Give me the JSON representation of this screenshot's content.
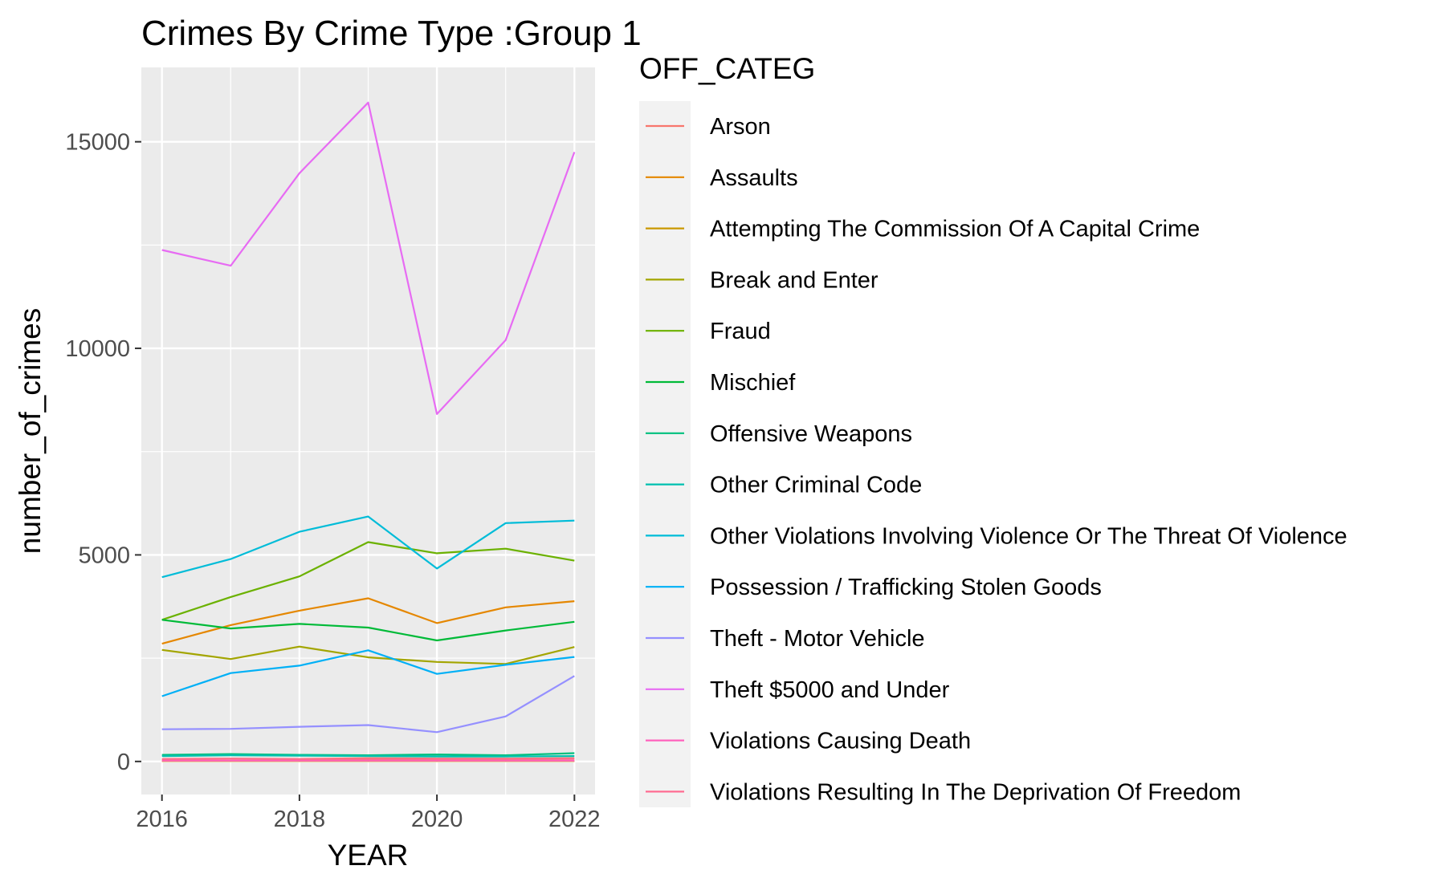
{
  "chart_data": {
    "type": "line",
    "title": "Crimes By Crime Type :Group 1",
    "xlabel": "YEAR",
    "ylabel": "number_of_crimes",
    "x": [
      2016,
      2017,
      2018,
      2019,
      2020,
      2021,
      2022
    ],
    "x_ticks": [
      "2016",
      "2018",
      "2020",
      "2022"
    ],
    "x_tick_values": [
      2016,
      2018,
      2020,
      2022
    ],
    "y_ticks": [
      "0",
      "5000",
      "10000",
      "15000"
    ],
    "y_tick_values": [
      0,
      5000,
      10000,
      15000
    ],
    "xlim": [
      2015.7,
      2022.3
    ],
    "ylim": [
      -800,
      16800
    ],
    "grid": true,
    "legend_title": "OFF_CATEG",
    "legend_position": "right",
    "series": [
      {
        "name": "Arson",
        "color": "#F8766D",
        "values": [
          60,
          70,
          60,
          80,
          70,
          70,
          80
        ]
      },
      {
        "name": "Assaults",
        "color": "#E58700",
        "values": [
          2850,
          3300,
          3650,
          3950,
          3350,
          3730,
          3880
        ]
      },
      {
        "name": "Attempting The Commission Of A Capital Crime",
        "color": "#C99800",
        "values": [
          10,
          10,
          10,
          10,
          10,
          10,
          10
        ]
      },
      {
        "name": "Break and Enter",
        "color": "#A3A500",
        "values": [
          2700,
          2480,
          2780,
          2520,
          2410,
          2360,
          2770
        ]
      },
      {
        "name": "Fraud",
        "color": "#6BB100",
        "values": [
          3430,
          3980,
          4480,
          5310,
          5040,
          5150,
          4860
        ]
      },
      {
        "name": "Mischief",
        "color": "#00BA38",
        "values": [
          3430,
          3220,
          3330,
          3240,
          2930,
          3170,
          3380
        ]
      },
      {
        "name": "Offensive Weapons",
        "color": "#00BF7D",
        "values": [
          160,
          180,
          160,
          150,
          170,
          150,
          200
        ]
      },
      {
        "name": "Other Criminal Code",
        "color": "#00C0AF",
        "values": [
          130,
          150,
          140,
          130,
          120,
          120,
          130
        ]
      },
      {
        "name": "Other Violations Involving Violence Or The Threat Of Violence",
        "color": "#00BCD8",
        "values": [
          4460,
          4900,
          5560,
          5930,
          4670,
          5770,
          5830
        ]
      },
      {
        "name": "Possession / Trafficking Stolen Goods",
        "color": "#00B0F6",
        "values": [
          1580,
          2140,
          2320,
          2690,
          2120,
          2340,
          2530
        ]
      },
      {
        "name": "Theft - Motor Vehicle",
        "color": "#9590FF",
        "values": [
          780,
          790,
          840,
          880,
          710,
          1090,
          2070
        ]
      },
      {
        "name": "Theft $5000 and Under",
        "color": "#E76BF3",
        "values": [
          12380,
          12000,
          14240,
          15950,
          8410,
          10200,
          14750
        ]
      },
      {
        "name": "Violations Causing Death",
        "color": "#FF62BC",
        "values": [
          20,
          20,
          20,
          20,
          20,
          20,
          20
        ]
      },
      {
        "name": "Violations Resulting In The Deprivation Of Freedom",
        "color": "#FF6C91",
        "values": [
          50,
          60,
          50,
          50,
          50,
          50,
          60
        ]
      }
    ]
  }
}
